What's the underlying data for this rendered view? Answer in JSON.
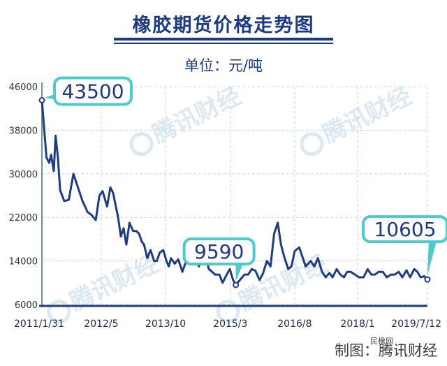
{
  "title": "橡胶期货价格走势图",
  "unit_label": "单位：元/吨",
  "credit": "制图：腾讯财经",
  "credit_badge": "民橡网",
  "watermark": "腾讯财经",
  "colors": {
    "line": "#1f3b82",
    "grid": "#c4d8e6",
    "callout": "#4fc9cc",
    "text": "#1c3a84"
  },
  "chart_data": {
    "type": "line",
    "title": "橡胶期货价格走势图",
    "ylabel": "元/吨",
    "xlabel": "",
    "ylim": [
      6000,
      46000
    ],
    "yticks": [
      6000,
      14000,
      22000,
      30000,
      38000,
      46000
    ],
    "xlim": [
      2011.08,
      2019.53
    ],
    "xticks": [
      {
        "x": 2011.08,
        "label": "2011/1/31"
      },
      {
        "x": 2012.38,
        "label": "2012/5"
      },
      {
        "x": 2013.79,
        "label": "2013/10"
      },
      {
        "x": 2015.21,
        "label": "2015/3"
      },
      {
        "x": 2016.62,
        "label": "2016/8"
      },
      {
        "x": 2018.0,
        "label": "2018/1"
      },
      {
        "x": 2019.53,
        "label": "2019/7/12"
      }
    ],
    "series": [
      {
        "name": "橡胶期货价格",
        "x": [
          2011.08,
          2011.18,
          2011.24,
          2011.28,
          2011.34,
          2011.38,
          2011.43,
          2011.48,
          2011.57,
          2011.67,
          2011.77,
          2011.85,
          2011.97,
          2012.08,
          2012.16,
          2012.26,
          2012.34,
          2012.41,
          2012.51,
          2012.58,
          2012.64,
          2012.7,
          2012.75,
          2012.81,
          2012.87,
          2012.93,
          2013.0,
          2013.08,
          2013.15,
          2013.21,
          2013.27,
          2013.32,
          2013.39,
          2013.46,
          2013.54,
          2013.6,
          2013.66,
          2013.74,
          2013.81,
          2013.86,
          2013.91,
          2013.99,
          2014.07,
          2014.16,
          2014.25,
          2014.34,
          2014.46,
          2014.52,
          2014.59,
          2014.67,
          2014.74,
          2014.81,
          2014.88,
          2014.97,
          2015.04,
          2015.13,
          2015.2,
          2015.27,
          2015.33,
          2015.42,
          2015.52,
          2015.6,
          2015.68,
          2015.76,
          2015.85,
          2015.93,
          2016.01,
          2016.09,
          2016.17,
          2016.25,
          2016.32,
          2016.4,
          2016.48,
          2016.55,
          2016.62,
          2016.72,
          2016.86,
          2016.97,
          2017.05,
          2017.13,
          2017.22,
          2017.3,
          2017.38,
          2017.45,
          2017.54,
          2017.62,
          2017.7,
          2017.77,
          2017.85,
          2017.94,
          2018.03,
          2018.13,
          2018.22,
          2018.3,
          2018.38,
          2018.46,
          2018.55,
          2018.64,
          2018.73,
          2018.81,
          2018.9,
          2018.98,
          2019.07,
          2019.15,
          2019.24,
          2019.31,
          2019.38,
          2019.46,
          2019.53
        ],
        "y": [
          43500,
          33000,
          32000,
          33500,
          30500,
          37000,
          33000,
          27000,
          25000,
          25200,
          30000,
          28000,
          25000,
          23000,
          22500,
          21500,
          26000,
          26800,
          24000,
          27500,
          26500,
          24000,
          22000,
          18500,
          20000,
          17000,
          21000,
          19500,
          19500,
          19000,
          17500,
          17000,
          14500,
          16000,
          14000,
          14000,
          15500,
          16000,
          14000,
          13000,
          14500,
          13500,
          14300,
          12000,
          14200,
          13600,
          14200,
          13000,
          14500,
          14800,
          12500,
          12000,
          11500,
          11500,
          10000,
          11500,
          12500,
          10500,
          9590,
          10500,
          11500,
          11500,
          12500,
          12200,
          10500,
          11800,
          14000,
          13000,
          19000,
          21000,
          17000,
          14500,
          12500,
          13000,
          15800,
          16500,
          13000,
          14000,
          13000,
          14500,
          12000,
          11000,
          11800,
          11000,
          12500,
          11500,
          11000,
          12000,
          12000,
          11500,
          11000,
          11000,
          12500,
          11500,
          11500,
          12000,
          12000,
          11000,
          11500,
          11500,
          12000,
          11000,
          12300,
          11000,
          12500,
          12000,
          11000,
          11200,
          10605
        ],
        "values_note": "approximate monthly readings"
      }
    ],
    "annotations": [
      {
        "x": 2011.08,
        "y": 43500,
        "label": "43500"
      },
      {
        "x": 2015.33,
        "y": 9590,
        "label": "9590"
      },
      {
        "x": 2019.53,
        "y": 10605,
        "label": "10605"
      }
    ]
  }
}
